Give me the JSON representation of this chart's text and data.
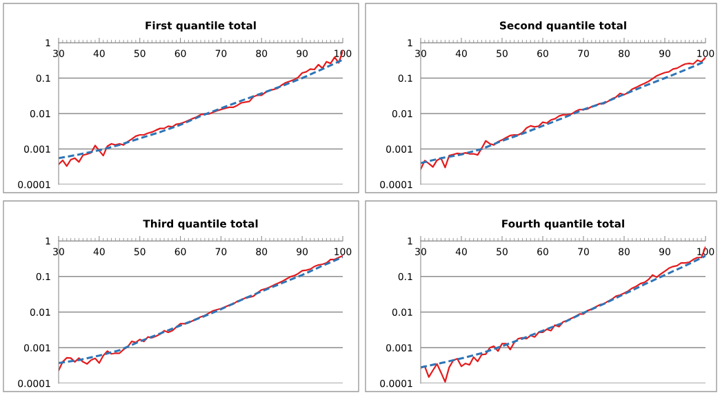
{
  "chart_data": [
    {
      "type": "line",
      "title": "First quantile total",
      "log": "y",
      "grid": "y",
      "xlim": [
        30,
        100
      ],
      "xticks": [
        30,
        40,
        50,
        60,
        70,
        80,
        90,
        100
      ],
      "ylim": [
        0.0001,
        1
      ],
      "yticks": [
        0.0001,
        0.001,
        0.01,
        0.1,
        1
      ],
      "x": [
        30,
        31,
        32,
        33,
        34,
        35,
        36,
        37,
        38,
        39,
        40,
        41,
        42,
        43,
        44,
        45,
        46,
        47,
        48,
        49,
        50,
        51,
        52,
        53,
        54,
        55,
        56,
        57,
        58,
        59,
        60,
        61,
        62,
        63,
        64,
        65,
        66,
        67,
        68,
        69,
        70,
        71,
        72,
        73,
        74,
        75,
        76,
        77,
        78,
        79,
        80,
        81,
        82,
        83,
        84,
        85,
        86,
        87,
        88,
        89,
        90,
        91,
        92,
        93,
        94,
        95,
        96,
        97,
        98,
        99,
        100
      ],
      "series": [
        {
          "color": "#e41a1c",
          "line_style": "solid",
          "values": [
            0.00037,
            0.00048,
            0.00033,
            0.0005,
            0.00055,
            0.00043,
            0.00067,
            0.00072,
            0.00078,
            0.00125,
            0.0009,
            0.00065,
            0.0012,
            0.0014,
            0.0013,
            0.0014,
            0.0013,
            0.0016,
            0.0019,
            0.0023,
            0.0025,
            0.0025,
            0.0028,
            0.003,
            0.0034,
            0.0038,
            0.0038,
            0.0044,
            0.0042,
            0.005,
            0.0052,
            0.0057,
            0.0064,
            0.0072,
            0.008,
            0.0093,
            0.0097,
            0.0097,
            0.0108,
            0.012,
            0.013,
            0.014,
            0.015,
            0.015,
            0.017,
            0.02,
            0.021,
            0.022,
            0.03,
            0.033,
            0.033,
            0.04,
            0.045,
            0.048,
            0.052,
            0.064,
            0.075,
            0.082,
            0.09,
            0.105,
            0.14,
            0.15,
            0.18,
            0.175,
            0.24,
            0.19,
            0.29,
            0.26,
            0.39,
            0.27,
            0.58
          ]
        },
        {
          "color": "#2e75b6",
          "line_style": "dashed",
          "x": [
            30,
            35,
            40,
            45,
            50,
            55,
            60,
            65,
            70,
            75,
            80,
            85,
            90,
            95,
            100
          ],
          "values": [
            0.00055,
            0.0007,
            0.00092,
            0.0013,
            0.002,
            0.003,
            0.0048,
            0.0085,
            0.014,
            0.023,
            0.037,
            0.06,
            0.1,
            0.18,
            0.33
          ]
        }
      ]
    },
    {
      "type": "line",
      "title": "Second quantile total",
      "log": "y",
      "grid": "y",
      "xlim": [
        30,
        100
      ],
      "xticks": [
        30,
        40,
        50,
        60,
        70,
        80,
        90,
        100
      ],
      "ylim": [
        0.0001,
        1
      ],
      "yticks": [
        0.0001,
        0.001,
        0.01,
        0.1,
        1
      ],
      "x": [
        30,
        31,
        32,
        33,
        34,
        35,
        36,
        37,
        38,
        39,
        40,
        41,
        42,
        43,
        44,
        45,
        46,
        47,
        48,
        49,
        50,
        51,
        52,
        53,
        54,
        55,
        56,
        57,
        58,
        59,
        60,
        61,
        62,
        63,
        64,
        65,
        66,
        67,
        68,
        69,
        70,
        71,
        72,
        73,
        74,
        75,
        76,
        77,
        78,
        79,
        80,
        81,
        82,
        83,
        84,
        85,
        86,
        87,
        88,
        89,
        90,
        91,
        92,
        93,
        94,
        95,
        96,
        97,
        98,
        99,
        100
      ],
      "series": [
        {
          "color": "#e41a1c",
          "line_style": "solid",
          "values": [
            0.00027,
            0.00047,
            0.00039,
            0.00031,
            0.00048,
            0.00055,
            0.0003,
            0.00065,
            0.0007,
            0.00075,
            0.00073,
            0.00078,
            0.00073,
            0.00073,
            0.00068,
            0.00105,
            0.0017,
            0.0014,
            0.0013,
            0.0016,
            0.0018,
            0.0021,
            0.0024,
            0.0025,
            0.0025,
            0.0029,
            0.0039,
            0.0045,
            0.0042,
            0.0044,
            0.0057,
            0.0054,
            0.0066,
            0.0071,
            0.0085,
            0.0092,
            0.0093,
            0.0096,
            0.0114,
            0.0129,
            0.013,
            0.0135,
            0.0156,
            0.017,
            0.019,
            0.019,
            0.022,
            0.026,
            0.029,
            0.037,
            0.034,
            0.039,
            0.049,
            0.055,
            0.063,
            0.071,
            0.081,
            0.096,
            0.116,
            0.129,
            0.143,
            0.15,
            0.18,
            0.19,
            0.22,
            0.25,
            0.26,
            0.25,
            0.32,
            0.29,
            0.38
          ]
        },
        {
          "color": "#2e75b6",
          "line_style": "dashed",
          "x": [
            30,
            35,
            40,
            45,
            50,
            55,
            60,
            65,
            70,
            75,
            80,
            85,
            90,
            95,
            100
          ],
          "values": [
            0.0004,
            0.00055,
            0.0007,
            0.001,
            0.0017,
            0.0027,
            0.0045,
            0.0075,
            0.013,
            0.02,
            0.035,
            0.06,
            0.1,
            0.17,
            0.3
          ]
        }
      ]
    },
    {
      "type": "line",
      "title": "Third quantile total",
      "log": "y",
      "grid": "y",
      "xlim": [
        30,
        100
      ],
      "xticks": [
        30,
        40,
        50,
        60,
        70,
        80,
        90,
        100
      ],
      "ylim": [
        0.0001,
        1
      ],
      "yticks": [
        0.0001,
        0.001,
        0.01,
        0.1,
        1
      ],
      "x": [
        30,
        31,
        32,
        33,
        34,
        35,
        36,
        37,
        38,
        39,
        40,
        41,
        42,
        43,
        44,
        45,
        46,
        47,
        48,
        49,
        50,
        51,
        52,
        53,
        54,
        55,
        56,
        57,
        58,
        59,
        60,
        61,
        62,
        63,
        64,
        65,
        66,
        67,
        68,
        69,
        70,
        71,
        72,
        73,
        74,
        75,
        76,
        77,
        78,
        79,
        80,
        81,
        82,
        83,
        84,
        85,
        86,
        87,
        88,
        89,
        90,
        91,
        92,
        93,
        94,
        95,
        96,
        97,
        98,
        99,
        100
      ],
      "series": [
        {
          "color": "#e41a1c",
          "line_style": "solid",
          "values": [
            0.00023,
            0.0004,
            0.00052,
            0.00051,
            0.0004,
            0.00051,
            0.0004,
            0.00035,
            0.00045,
            0.0005,
            0.00037,
            0.0006,
            0.0008,
            0.00067,
            0.0007,
            0.0007,
            0.00089,
            0.00105,
            0.0015,
            0.0014,
            0.0017,
            0.0015,
            0.002,
            0.0019,
            0.0021,
            0.0024,
            0.003,
            0.0027,
            0.003,
            0.0038,
            0.0047,
            0.0047,
            0.005,
            0.0057,
            0.0065,
            0.0073,
            0.008,
            0.0093,
            0.0108,
            0.0117,
            0.0125,
            0.014,
            0.0155,
            0.0168,
            0.02,
            0.022,
            0.025,
            0.026,
            0.028,
            0.035,
            0.042,
            0.045,
            0.05,
            0.057,
            0.064,
            0.072,
            0.084,
            0.097,
            0.105,
            0.12,
            0.145,
            0.15,
            0.16,
            0.19,
            0.21,
            0.22,
            0.24,
            0.3,
            0.3,
            0.34,
            0.38
          ]
        },
        {
          "color": "#2e75b6",
          "line_style": "dashed",
          "x": [
            30,
            35,
            40,
            45,
            50,
            55,
            60,
            65,
            70,
            75,
            80,
            85,
            90,
            95,
            100
          ],
          "values": [
            0.00037,
            0.00045,
            0.0006,
            0.00085,
            0.0015,
            0.0025,
            0.0042,
            0.007,
            0.012,
            0.022,
            0.038,
            0.065,
            0.11,
            0.2,
            0.35
          ]
        }
      ]
    },
    {
      "type": "line",
      "title": "Fourth quantile total",
      "log": "y",
      "grid": "y",
      "xlim": [
        30,
        100
      ],
      "xticks": [
        30,
        40,
        50,
        60,
        70,
        80,
        90,
        100
      ],
      "ylim": [
        0.0001,
        1
      ],
      "yticks": [
        0.0001,
        0.001,
        0.01,
        0.1,
        1
      ],
      "x": [
        30,
        31,
        32,
        33,
        34,
        35,
        36,
        37,
        38,
        39,
        40,
        41,
        42,
        43,
        44,
        45,
        46,
        47,
        48,
        49,
        50,
        51,
        52,
        53,
        54,
        55,
        56,
        57,
        58,
        59,
        60,
        61,
        62,
        63,
        64,
        65,
        66,
        67,
        68,
        69,
        70,
        71,
        72,
        73,
        74,
        75,
        76,
        77,
        78,
        79,
        80,
        81,
        82,
        83,
        84,
        85,
        86,
        87,
        88,
        89,
        90,
        91,
        92,
        93,
        94,
        95,
        96,
        97,
        98,
        99,
        100
      ],
      "series": [
        {
          "color": "#e41a1c",
          "line_style": "solid",
          "values": [
            0.00027,
            0.0003,
            0.00015,
            0.00023,
            0.00035,
            0.0002,
            0.00011,
            0.00028,
            0.00044,
            0.00049,
            0.0003,
            0.00036,
            0.00033,
            0.00054,
            0.00041,
            0.00064,
            0.00066,
            0.001,
            0.0011,
            0.0008,
            0.0013,
            0.0013,
            0.00089,
            0.0014,
            0.0018,
            0.0019,
            0.0018,
            0.0022,
            0.002,
            0.0027,
            0.0027,
            0.0033,
            0.003,
            0.0043,
            0.0039,
            0.0053,
            0.0058,
            0.0066,
            0.0075,
            0.0088,
            0.0088,
            0.011,
            0.012,
            0.014,
            0.016,
            0.017,
            0.02,
            0.023,
            0.028,
            0.03,
            0.034,
            0.039,
            0.047,
            0.053,
            0.063,
            0.068,
            0.082,
            0.11,
            0.095,
            0.117,
            0.14,
            0.17,
            0.19,
            0.2,
            0.24,
            0.24,
            0.25,
            0.3,
            0.34,
            0.34,
            0.67
          ]
        },
        {
          "color": "#2e75b6",
          "line_style": "dashed",
          "x": [
            30,
            35,
            40,
            45,
            50,
            55,
            60,
            65,
            70,
            75,
            80,
            85,
            90,
            95,
            100
          ],
          "values": [
            0.00028,
            0.00037,
            0.0005,
            0.0007,
            0.0011,
            0.0018,
            0.003,
            0.005,
            0.0095,
            0.017,
            0.032,
            0.06,
            0.11,
            0.2,
            0.38
          ]
        }
      ]
    }
  ]
}
